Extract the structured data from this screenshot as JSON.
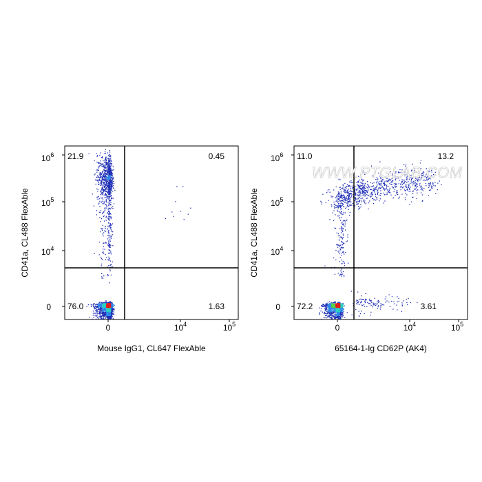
{
  "watermark": "WWW.PTGLAB.COM",
  "chart_data": [
    {
      "type": "scatter",
      "title": "",
      "xlabel": "Mouse IgG1, CL647 FlexAble",
      "ylabel": "CD41a, CL488 FlexAble",
      "x_ticks": [
        {
          "label": "0",
          "exp": ""
        },
        {
          "label": "10",
          "exp": "4"
        },
        {
          "label": "10",
          "exp": "5"
        }
      ],
      "y_ticks": [
        {
          "label": "0",
          "exp": ""
        },
        {
          "label": "10",
          "exp": "4"
        },
        {
          "label": "10",
          "exp": "5"
        },
        {
          "label": "10",
          "exp": "6"
        }
      ],
      "quadrants": {
        "upper_left": "21.9",
        "upper_right": "0.45",
        "lower_left": "76.0",
        "lower_right": "1.63"
      },
      "populations": [
        {
          "name": "negative-cluster",
          "count": 1700,
          "cx": 0,
          "cy": 0,
          "sx": 0.14,
          "sy": 0.17
        },
        {
          "name": "cd41a-high-cluster",
          "count": 850,
          "cx": 0,
          "cy": 4.95,
          "sx": 0.14,
          "sy": 0.24
        },
        {
          "name": "intermediate-stream",
          "count": 220,
          "cx": 0,
          "cy": 3.9,
          "sx": 0.12,
          "sy": 0.55
        },
        {
          "name": "double-positive",
          "count": 10,
          "cx": 3.6,
          "cy": 4.3,
          "sx": 0.35,
          "sy": 0.4
        }
      ]
    },
    {
      "type": "scatter",
      "title": "",
      "xlabel": "65164-1-Ig CD62P (AK4)",
      "ylabel": "CD41a, CL488 FlexAble",
      "x_ticks": [
        {
          "label": "0",
          "exp": ""
        },
        {
          "label": "10",
          "exp": "4"
        },
        {
          "label": "10",
          "exp": "5"
        }
      ],
      "y_ticks": [
        {
          "label": "0",
          "exp": ""
        },
        {
          "label": "10",
          "exp": "4"
        },
        {
          "label": "10",
          "exp": "5"
        },
        {
          "label": "10",
          "exp": "6"
        }
      ],
      "quadrants": {
        "upper_left": "11.0",
        "upper_right": "13.2",
        "lower_left": "72.2",
        "lower_right": "3.61"
      },
      "populations": [
        {
          "name": "negative-cluster",
          "count": 1500,
          "cx": 0,
          "cy": 0,
          "sx": 0.16,
          "sy": 0.15
        },
        {
          "name": "activated-diagonal",
          "count": 900,
          "x_from": -0.2,
          "x_to": 4.6,
          "y_from": 4.5,
          "y_to": 4.95,
          "spread": 0.15
        },
        {
          "name": "intermediate-stream",
          "count": 150,
          "cx": 0.2,
          "cy": 3.8,
          "sx": 0.2,
          "sy": 0.5
        },
        {
          "name": "cd62p-positive-low",
          "count": 120,
          "cx": 2.4,
          "cy": 0.3,
          "sx": 0.6,
          "sy": 0.35
        }
      ]
    }
  ]
}
